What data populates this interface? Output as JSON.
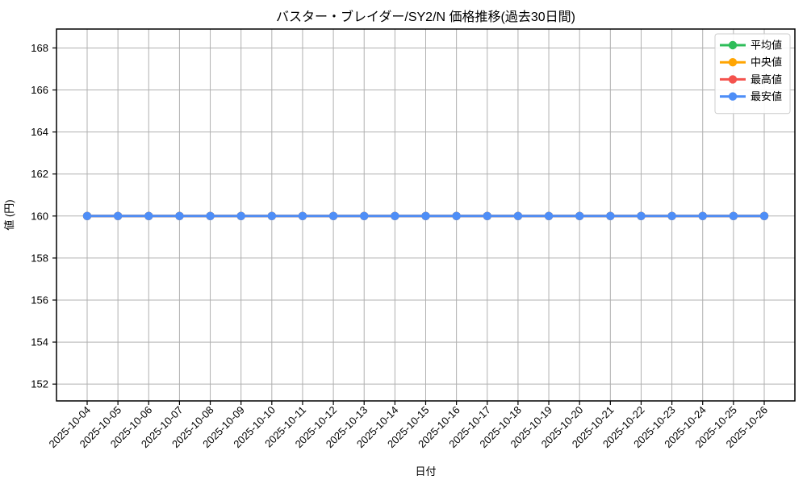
{
  "chart_data": {
    "type": "line",
    "title": "バスター・ブレイダー/SY2/N 価格推移(過去30日間)",
    "xlabel": "日付",
    "ylabel": "値 (円)",
    "categories": [
      "2025-10-04",
      "2025-10-05",
      "2025-10-06",
      "2025-10-07",
      "2025-10-08",
      "2025-10-09",
      "2025-10-10",
      "2025-10-11",
      "2025-10-12",
      "2025-10-13",
      "2025-10-14",
      "2025-10-15",
      "2025-10-16",
      "2025-10-17",
      "2025-10-18",
      "2025-10-19",
      "2025-10-20",
      "2025-10-21",
      "2025-10-22",
      "2025-10-23",
      "2025-10-24",
      "2025-10-25",
      "2025-10-26"
    ],
    "series": [
      {
        "name": "平均値",
        "color": "#2ebd59",
        "values": [
          160,
          160,
          160,
          160,
          160,
          160,
          160,
          160,
          160,
          160,
          160,
          160,
          160,
          160,
          160,
          160,
          160,
          160,
          160,
          160,
          160,
          160,
          160
        ]
      },
      {
        "name": "中央値",
        "color": "#ffa502",
        "values": [
          160,
          160,
          160,
          160,
          160,
          160,
          160,
          160,
          160,
          160,
          160,
          160,
          160,
          160,
          160,
          160,
          160,
          160,
          160,
          160,
          160,
          160,
          160
        ]
      },
      {
        "name": "最高値",
        "color": "#f4524d",
        "values": [
          160,
          160,
          160,
          160,
          160,
          160,
          160,
          160,
          160,
          160,
          160,
          160,
          160,
          160,
          160,
          160,
          160,
          160,
          160,
          160,
          160,
          160,
          160
        ]
      },
      {
        "name": "最安値",
        "color": "#4e8ef7",
        "values": [
          160,
          160,
          160,
          160,
          160,
          160,
          160,
          160,
          160,
          160,
          160,
          160,
          160,
          160,
          160,
          160,
          160,
          160,
          160,
          160,
          160,
          160,
          160
        ]
      }
    ],
    "yticks": [
      152,
      154,
      156,
      158,
      160,
      162,
      164,
      166,
      168
    ],
    "ylim": [
      151.2,
      168.9
    ],
    "grid": true,
    "legend_position": "upper right",
    "colors": {
      "grid": "#b0b0b0",
      "spine": "#000000",
      "legend_border": "#cccccc",
      "legend_bg": "#ffffff"
    }
  }
}
